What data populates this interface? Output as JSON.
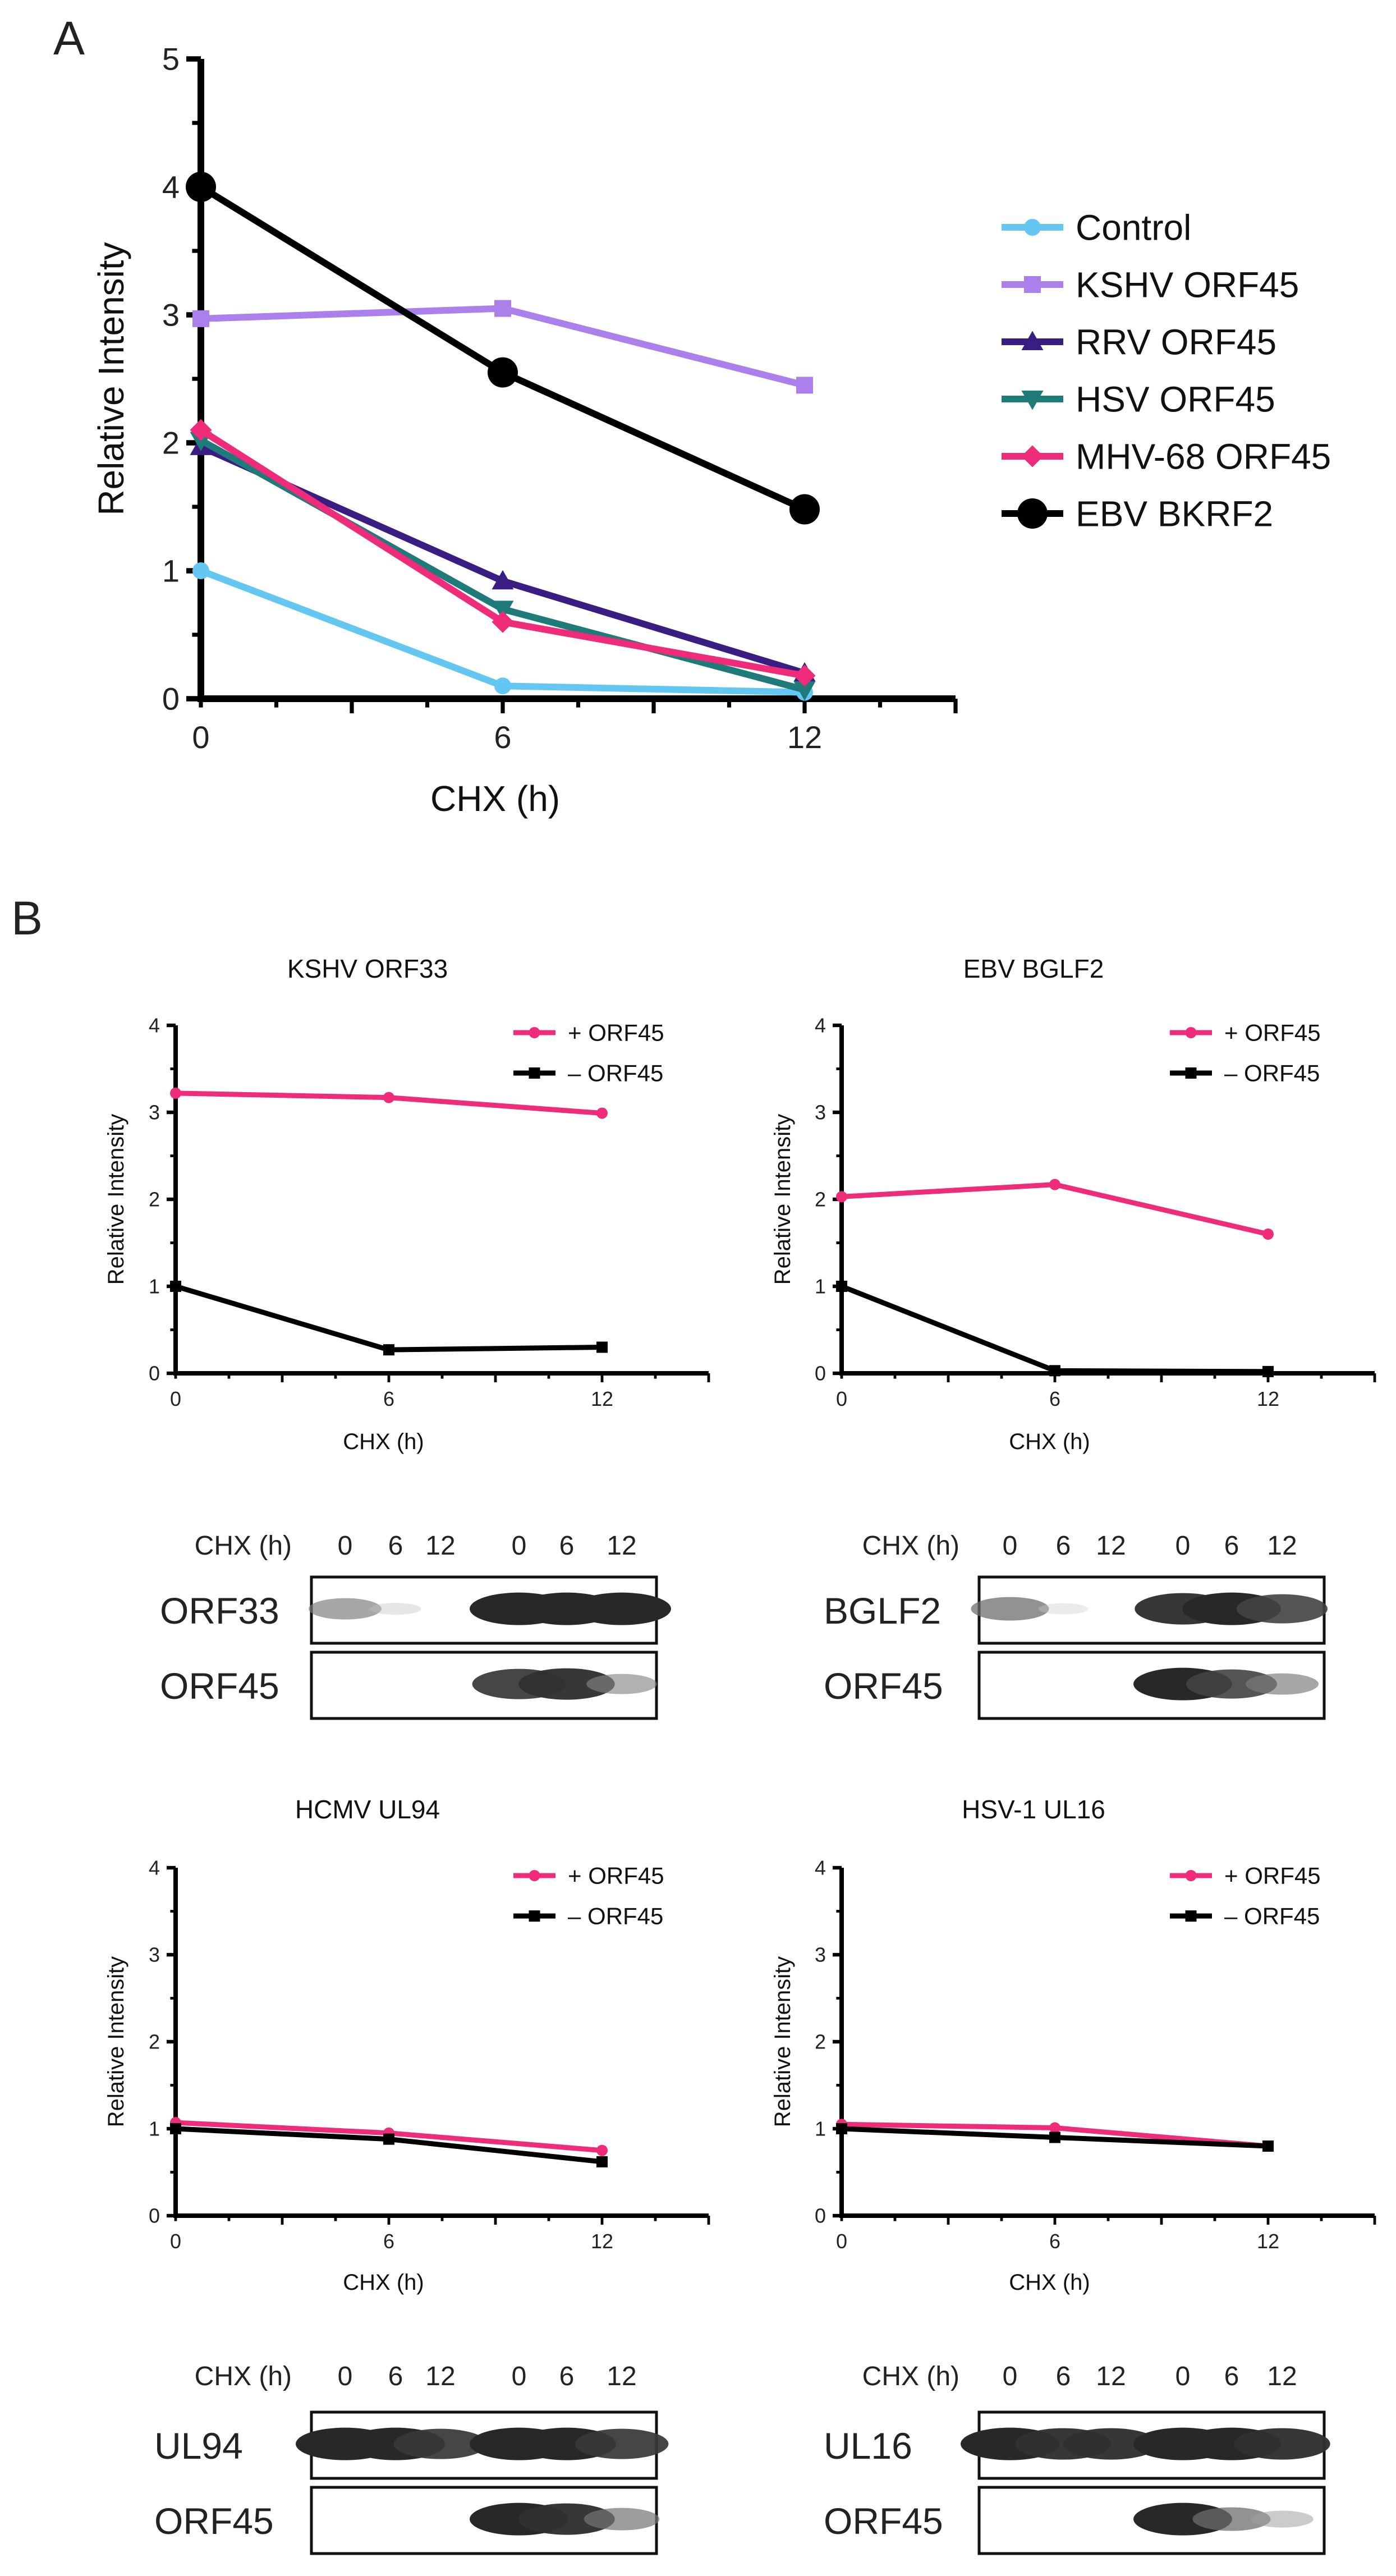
{
  "panel_labels": {
    "a": "A",
    "b": "B"
  },
  "colors": {
    "control": "#63c7f2",
    "kshv": "#ab7fec",
    "rrv": "#3a1d83",
    "hsv": "#1f7a7a",
    "mhv": "#ef2c79",
    "ebv": "#000000",
    "plus": "#ef2c79",
    "minus": "#000000"
  },
  "chart_data": [
    {
      "type": "line",
      "title": "",
      "xlabel": "CHX (h)",
      "ylabel": "Relative Intensity",
      "x": [
        0,
        6,
        12
      ],
      "xlim": [
        0,
        15
      ],
      "ylim": [
        0,
        5
      ],
      "xticks": [
        "0",
        "6",
        "12"
      ],
      "yticks": [
        "0",
        "1",
        "2",
        "3",
        "4",
        "5"
      ],
      "legend_position": "right",
      "series": [
        {
          "name": "Control",
          "values": [
            1.0,
            0.1,
            0.05
          ],
          "marker": "circle",
          "color": "#63c7f2"
        },
        {
          "name": "KSHV ORF45",
          "values": [
            2.97,
            3.05,
            2.45
          ],
          "marker": "square",
          "color": "#ab7fec"
        },
        {
          "name": "RRV ORF45",
          "values": [
            1.97,
            0.92,
            0.2
          ],
          "marker": "triangle-up",
          "color": "#3a1d83"
        },
        {
          "name": "HSV ORF45",
          "values": [
            2.02,
            0.7,
            0.07
          ],
          "marker": "triangle-down",
          "color": "#1f7a7a"
        },
        {
          "name": "MHV-68 ORF45",
          "values": [
            2.1,
            0.6,
            0.18
          ],
          "marker": "diamond",
          "color": "#ef2c79"
        },
        {
          "name": "EBV BKRF2",
          "values": [
            4.0,
            2.55,
            1.48
          ],
          "marker": "big-circle",
          "color": "#000000"
        }
      ]
    },
    {
      "type": "line",
      "title": "KSHV ORF33",
      "xlabel": "CHX (h)",
      "ylabel": "Relative Intensity",
      "x": [
        0,
        6,
        12
      ],
      "xlim": [
        0,
        15
      ],
      "ylim": [
        0,
        4
      ],
      "xticks": [
        "0",
        "6",
        "12"
      ],
      "yticks": [
        "0",
        "1",
        "2",
        "3",
        "4"
      ],
      "legend_position": "top-right",
      "series": [
        {
          "name": "+ ORF45",
          "values": [
            3.22,
            3.17,
            2.99
          ],
          "marker": "circle",
          "color": "#ef2c79"
        },
        {
          "name": "– ORF45",
          "values": [
            1.0,
            0.27,
            0.3
          ],
          "marker": "square",
          "color": "#000000"
        }
      ]
    },
    {
      "type": "line",
      "title": "EBV BGLF2",
      "xlabel": "CHX (h)",
      "ylabel": "Relative Intensity",
      "x": [
        0,
        6,
        12
      ],
      "xlim": [
        0,
        15
      ],
      "ylim": [
        0,
        4
      ],
      "xticks": [
        "0",
        "6",
        "12"
      ],
      "yticks": [
        "0",
        "1",
        "2",
        "3",
        "4"
      ],
      "legend_position": "top-right",
      "series": [
        {
          "name": "+ ORF45",
          "values": [
            2.03,
            2.17,
            1.6
          ],
          "marker": "circle",
          "color": "#ef2c79"
        },
        {
          "name": "– ORF45",
          "values": [
            1.0,
            0.03,
            0.02
          ],
          "marker": "square",
          "color": "#000000"
        }
      ]
    },
    {
      "type": "line",
      "title": "HCMV UL94",
      "xlabel": "CHX (h)",
      "ylabel": "Relative Intensity",
      "x": [
        0,
        6,
        12
      ],
      "xlim": [
        0,
        15
      ],
      "ylim": [
        0,
        4
      ],
      "xticks": [
        "0",
        "6",
        "12"
      ],
      "yticks": [
        "0",
        "1",
        "2",
        "3",
        "4"
      ],
      "legend_position": "top-right",
      "series": [
        {
          "name": "+ ORF45",
          "values": [
            1.07,
            0.95,
            0.75
          ],
          "marker": "circle",
          "color": "#ef2c79"
        },
        {
          "name": "– ORF45",
          "values": [
            1.0,
            0.88,
            0.62
          ],
          "marker": "square",
          "color": "#000000"
        }
      ]
    },
    {
      "type": "line",
      "title": "HSV-1 UL16",
      "xlabel": "CHX (h)",
      "ylabel": "Relative Intensity",
      "x": [
        0,
        6,
        12
      ],
      "xlim": [
        0,
        15
      ],
      "ylim": [
        0,
        4
      ],
      "xticks": [
        "0",
        "6",
        "12"
      ],
      "yticks": [
        "0",
        "1",
        "2",
        "3",
        "4"
      ],
      "legend_position": "top-right",
      "series": [
        {
          "name": "+ ORF45",
          "values": [
            1.05,
            1.01,
            0.8
          ],
          "marker": "circle",
          "color": "#ef2c79"
        },
        {
          "name": "– ORF45",
          "values": [
            1.0,
            0.9,
            0.8
          ],
          "marker": "square",
          "color": "#000000"
        }
      ]
    }
  ],
  "blots": [
    {
      "header": "CHX (h)",
      "lanes": [
        "0",
        "6",
        "12",
        "0",
        "6",
        "12"
      ],
      "rows": [
        {
          "label": "ORF33",
          "bands": [
            0.5,
            0.08,
            0,
            1,
            1,
            1
          ]
        },
        {
          "label": "ORF45",
          "bands": [
            0,
            0,
            0,
            0.9,
            0.95,
            0.45
          ]
        }
      ]
    },
    {
      "header": "CHX (h)",
      "lanes": [
        "0",
        "6",
        "12",
        "0",
        "6",
        "12"
      ],
      "rows": [
        {
          "label": "BGLF2",
          "bands": [
            0.6,
            0.05,
            0,
            0.95,
            1,
            0.85
          ]
        },
        {
          "label": "ORF45",
          "bands": [
            0,
            0,
            0,
            1,
            0.85,
            0.5
          ]
        }
      ]
    },
    {
      "header": "CHX (h)",
      "lanes": [
        "0",
        "6",
        "12",
        "0",
        "6",
        "12"
      ],
      "rows": [
        {
          "label": "UL94",
          "bands": [
            1,
            1,
            0.9,
            1,
            1,
            0.9
          ]
        },
        {
          "label": "ORF45",
          "bands": [
            0,
            0,
            0,
            1,
            0.95,
            0.55
          ]
        }
      ]
    },
    {
      "header": "CHX (h)",
      "lanes": [
        "0",
        "6",
        "12",
        "0",
        "6",
        "12"
      ],
      "rows": [
        {
          "label": "UL16",
          "bands": [
            1,
            0.95,
            0.95,
            1,
            1,
            0.95
          ]
        },
        {
          "label": "ORF45",
          "bands": [
            0,
            0,
            0,
            1,
            0.6,
            0.3
          ]
        }
      ]
    }
  ]
}
